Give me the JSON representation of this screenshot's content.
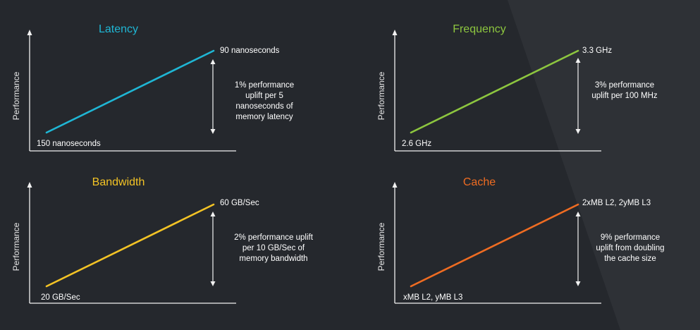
{
  "colors": {
    "background": "#25282d",
    "background_shape": "#2e3136",
    "axis": "#f2f2f2",
    "text": "#ffffff"
  },
  "chart_data": [
    {
      "type": "line",
      "title": "Latency",
      "color": "#1fb6d4",
      "ylabel": "Performance",
      "x": [
        "150 nanoseconds",
        "90 nanoseconds"
      ],
      "values": [
        0,
        1
      ],
      "start_label": "150 nanoseconds",
      "end_label": "90 nanoseconds",
      "annotation": [
        "1% performance",
        "uplift per 5",
        "nanoseconds of",
        "memory latency"
      ]
    },
    {
      "type": "line",
      "title": "Frequency",
      "color": "#8dc63f",
      "ylabel": "Performance",
      "x": [
        "2.6 GHz",
        "3.3 GHz"
      ],
      "values": [
        0,
        1
      ],
      "start_label": "2.6 GHz",
      "end_label": "3.3 GHz",
      "annotation": [
        "3% performance",
        "uplift per 100 MHz"
      ]
    },
    {
      "type": "line",
      "title": "Bandwidth",
      "color": "#f3c325",
      "ylabel": "Performance",
      "x": [
        "20 GB/Sec",
        "60 GB/Sec"
      ],
      "values": [
        0,
        1
      ],
      "start_label": "20 GB/Sec",
      "end_label": "60 GB/Sec",
      "annotation": [
        "2% performance uplift",
        "per 10 GB/Sec of",
        "memory bandwidth"
      ]
    },
    {
      "type": "line",
      "title": "Cache",
      "color": "#ef6c22",
      "ylabel": "Performance",
      "x": [
        "xMB L2, yMB L3",
        "2xMB L2, 2yMB L3"
      ],
      "values": [
        0,
        1
      ],
      "start_label": "xMB L2, yMB L3",
      "end_label": "2xMB L2, 2yMB L3",
      "annotation": [
        "9% performance",
        "uplift from doubling",
        "the cache size"
      ]
    }
  ]
}
